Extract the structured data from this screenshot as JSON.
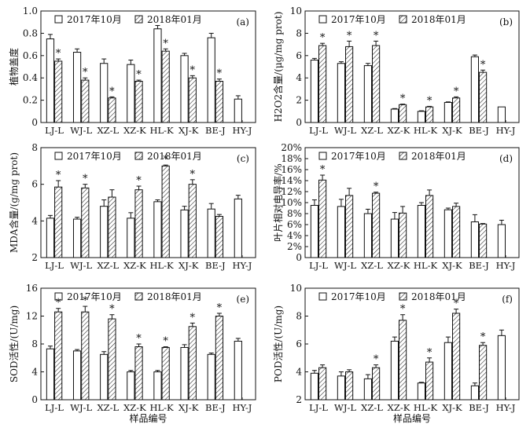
{
  "legend_labels": [
    "2017年10月",
    "2018年01月"
  ],
  "chart_data": [
    {
      "panel": "(a)",
      "type": "bar",
      "categories": [
        "LJ-L",
        "WJ-L",
        "XZ-L",
        "XZ-K",
        "HL-K",
        "XJ-K",
        "BE-J",
        "HY-J"
      ],
      "ylabel": "植物盖度",
      "xlabel": "",
      "ylim": [
        0,
        1.0
      ],
      "yticks": [
        0,
        0.2,
        0.4,
        0.6,
        0.8,
        1.0
      ],
      "yticklabels": [
        "0",
        "0.2",
        "0.4",
        "0.6",
        "0.8",
        "1.0"
      ],
      "series": [
        {
          "name": "2017年10月",
          "values": [
            0.75,
            0.63,
            0.53,
            0.52,
            0.84,
            0.6,
            0.76,
            0.21
          ],
          "errors": [
            0.04,
            0.03,
            0.04,
            0.04,
            0.03,
            0.02,
            0.04,
            0.03
          ]
        },
        {
          "name": "2018年01月",
          "values": [
            0.55,
            0.38,
            0.22,
            0.37,
            0.64,
            0.4,
            0.37,
            null
          ],
          "errors": [
            0.02,
            0.02,
            0.01,
            0.01,
            0.02,
            0.02,
            0.02,
            null
          ]
        }
      ],
      "stars": [
        1,
        1,
        1,
        1,
        1,
        1,
        1,
        0
      ]
    },
    {
      "panel": "(b)",
      "type": "bar",
      "categories": [
        "LJ-L",
        "WJ-L",
        "XZ-L",
        "XZ-K",
        "HL-K",
        "XJ-K",
        "BE-J",
        "HY-J"
      ],
      "ylabel": "H2O2含量/(μg/mg prot)",
      "xlabel": "",
      "ylim": [
        0,
        10
      ],
      "yticks": [
        0,
        2,
        4,
        6,
        8,
        10
      ],
      "yticklabels": [
        "0",
        "2",
        "4",
        "6",
        "8",
        "10"
      ],
      "series": [
        {
          "name": "2017年10月",
          "values": [
            5.6,
            5.3,
            5.1,
            1.2,
            1.0,
            1.8,
            5.9,
            1.4
          ],
          "errors": [
            0.15,
            0.15,
            0.2,
            0.05,
            0.05,
            0.05,
            0.15,
            null
          ]
        },
        {
          "name": "2018年01月",
          "values": [
            6.9,
            6.8,
            6.9,
            1.6,
            1.4,
            2.2,
            4.5,
            null
          ],
          "errors": [
            0.2,
            0.5,
            0.4,
            0.05,
            0.05,
            0.1,
            0.2,
            null
          ]
        }
      ],
      "stars": [
        1,
        1,
        1,
        1,
        1,
        1,
        1,
        0
      ]
    },
    {
      "panel": "(c)",
      "type": "bar",
      "categories": [
        "LJ-L",
        "WJ-L",
        "XZ-L",
        "XZ-K",
        "HL-K",
        "XJ-K",
        "BE-J",
        "HY-J"
      ],
      "ylabel": "MDA含量/(g/mg prot)",
      "xlabel": "",
      "ylim": [
        2,
        8
      ],
      "yticks": [
        2,
        4,
        6,
        8
      ],
      "yticklabels": [
        "2",
        "4",
        "6",
        "8"
      ],
      "series": [
        {
          "name": "2017年10月",
          "values": [
            4.15,
            4.1,
            4.8,
            4.15,
            5.05,
            4.6,
            4.65,
            5.2
          ],
          "errors": [
            0.15,
            0.1,
            0.35,
            0.3,
            0.1,
            0.2,
            0.3,
            0.2
          ]
        },
        {
          "name": "2018年01月",
          "values": [
            5.85,
            5.8,
            5.3,
            5.7,
            7.0,
            6.0,
            4.25,
            null
          ],
          "errors": [
            0.35,
            0.2,
            0.4,
            0.2,
            0.05,
            0.25,
            0.1,
            null
          ]
        }
      ],
      "stars": [
        1,
        1,
        0,
        1,
        1,
        1,
        0,
        0
      ]
    },
    {
      "panel": "(d)",
      "type": "bar",
      "categories": [
        "LJ-L",
        "WJ-L",
        "XZ-L",
        "XZ-K",
        "HL-K",
        "XJ-K",
        "BE-J",
        "HY-J"
      ],
      "ylabel": "叶片相对电导率/%",
      "xlabel": "",
      "ylim": [
        0,
        20
      ],
      "yticks": [
        0,
        2,
        4,
        6,
        8,
        10,
        12,
        14,
        16,
        18,
        20
      ],
      "yticklabels": [
        "0",
        "2%",
        "4%",
        "6%",
        "8%",
        "10%",
        "12%",
        "14%",
        "16%",
        "18%",
        "20%"
      ],
      "series": [
        {
          "name": "2017年10月",
          "values": [
            9.5,
            9.3,
            8.0,
            7.0,
            9.5,
            8.7,
            6.5,
            6.0
          ],
          "errors": [
            1.0,
            1.3,
            0.8,
            1.2,
            0.5,
            0.3,
            1.3,
            0.8
          ]
        },
        {
          "name": "2018年01月",
          "values": [
            14.1,
            11.3,
            11.7,
            8.1,
            11.3,
            9.3,
            6.1,
            null
          ],
          "errors": [
            0.9,
            1.3,
            0.2,
            1.2,
            1.0,
            0.6,
            0.1,
            null
          ]
        }
      ],
      "stars": [
        1,
        0,
        1,
        0,
        0,
        0,
        0,
        0
      ]
    },
    {
      "panel": "(e)",
      "type": "bar",
      "categories": [
        "LJ-L",
        "WJ-L",
        "XZ-L",
        "XZ-K",
        "HL-K",
        "XJ-K",
        "BE-J",
        "HY-J"
      ],
      "ylabel": "SOD活性/(U/mg)",
      "xlabel": "样品编号",
      "ylim": [
        0,
        16
      ],
      "yticks": [
        0,
        4,
        8,
        12,
        16
      ],
      "yticklabels": [
        "0",
        "4",
        "8",
        "12",
        "16"
      ],
      "series": [
        {
          "name": "2017年10月",
          "values": [
            7.3,
            7.0,
            6.5,
            4.0,
            4.0,
            7.5,
            6.5,
            8.4
          ],
          "errors": [
            0.4,
            0.2,
            0.4,
            0.2,
            0.2,
            0.4,
            0.2,
            0.4
          ]
        },
        {
          "name": "2018年01月",
          "values": [
            12.6,
            12.6,
            11.6,
            7.6,
            7.5,
            10.5,
            12.0,
            null
          ],
          "errors": [
            0.5,
            0.8,
            0.6,
            0.4,
            0.1,
            0.5,
            0.4,
            null
          ]
        }
      ],
      "stars": [
        1,
        1,
        1,
        1,
        1,
        1,
        1,
        0
      ]
    },
    {
      "panel": "(f)",
      "type": "bar",
      "categories": [
        "LJ-L",
        "WJ-L",
        "XZ-L",
        "XZ-K",
        "HL-K",
        "XJ-K",
        "BE-J",
        "HY-J"
      ],
      "ylabel": "POD活性/(U/mg)",
      "xlabel": "样品编号",
      "ylim": [
        2,
        10
      ],
      "yticks": [
        2,
        4,
        6,
        8,
        10
      ],
      "yticklabels": [
        "2",
        "4",
        "6",
        "8",
        "10"
      ],
      "series": [
        {
          "name": "2017年10月",
          "values": [
            3.9,
            3.7,
            3.5,
            6.2,
            3.2,
            6.1,
            3.0,
            6.6
          ],
          "errors": [
            0.2,
            0.3,
            0.3,
            0.3,
            0.05,
            0.4,
            0.2,
            0.4
          ]
        },
        {
          "name": "2018年01月",
          "values": [
            4.3,
            4.0,
            4.3,
            7.7,
            4.7,
            8.2,
            5.9,
            null
          ],
          "errors": [
            0.2,
            0.15,
            0.2,
            0.4,
            0.3,
            0.3,
            0.2,
            null
          ]
        }
      ],
      "stars": [
        0,
        0,
        1,
        1,
        1,
        1,
        1,
        0
      ]
    }
  ]
}
